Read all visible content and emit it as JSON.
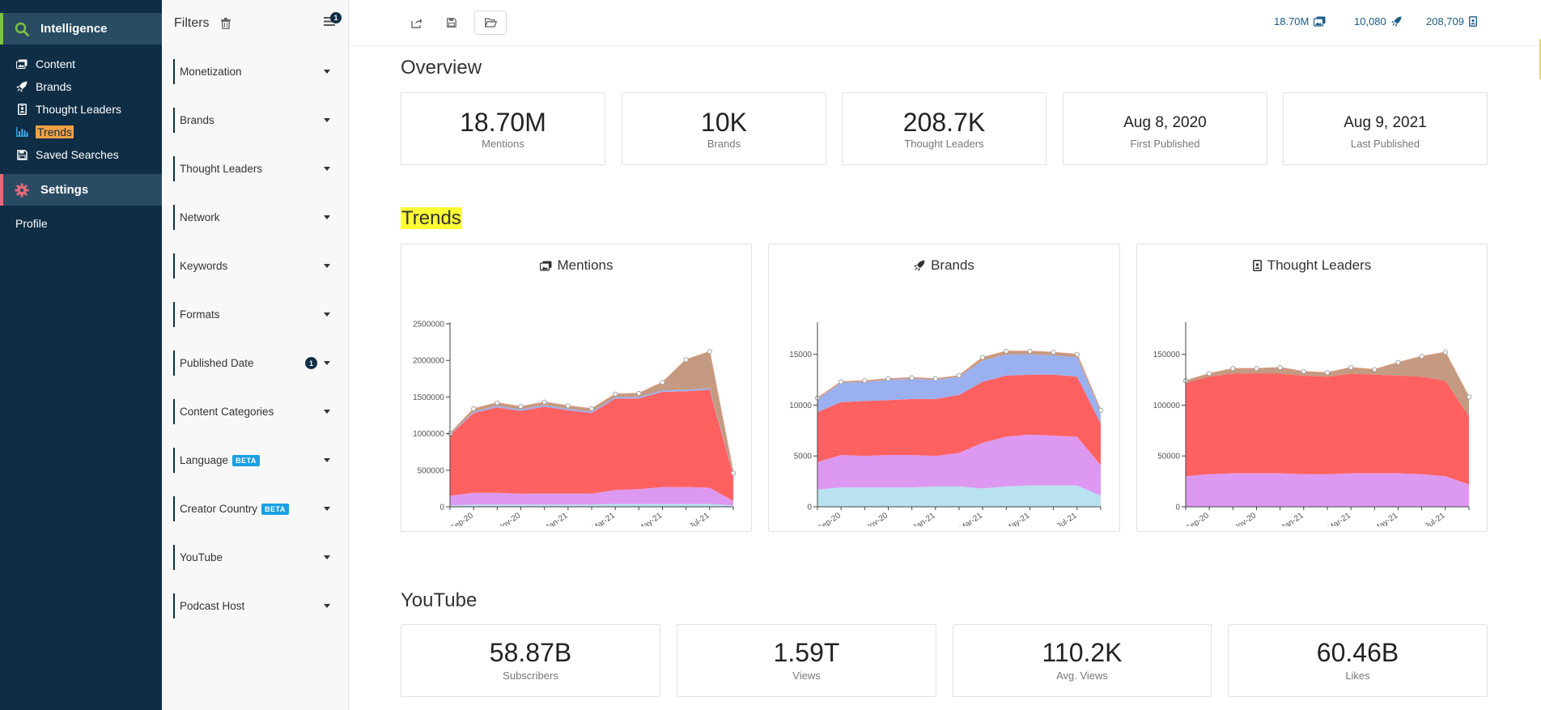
{
  "nav": {
    "intelligence": {
      "label": "Intelligence",
      "accent": "#7dc242"
    },
    "items": [
      {
        "label": "Content",
        "icon": "images-icon"
      },
      {
        "label": "Brands",
        "icon": "rocket-icon"
      },
      {
        "label": "Thought Leaders",
        "icon": "id-badge-icon"
      },
      {
        "label": "Trends",
        "icon": "bar-chart-icon"
      },
      {
        "label": "Saved Searches",
        "icon": "floppy-disk-icon"
      }
    ],
    "settings": {
      "label": "Settings",
      "accent": "#e8697a"
    },
    "profile": "Profile"
  },
  "filters": {
    "title": "Filters",
    "menu_badge": "1",
    "items": [
      {
        "label": "Monetization"
      },
      {
        "label": "Brands"
      },
      {
        "label": "Thought Leaders"
      },
      {
        "label": "Network"
      },
      {
        "label": "Keywords"
      },
      {
        "label": "Formats"
      },
      {
        "label": "Published Date",
        "badge": "1"
      },
      {
        "label": "Content Categories"
      },
      {
        "label": "Language",
        "tag": "BETA"
      },
      {
        "label": "Creator Country",
        "tag": "BETA"
      },
      {
        "label": "YouTube"
      },
      {
        "label": "Podcast Host"
      }
    ]
  },
  "topbar": {
    "mentions": "18.70M",
    "brands": "10,080",
    "thought_leaders": "208,709"
  },
  "overview": {
    "title": "Overview",
    "cards": [
      {
        "value": "18.70M",
        "label": "Mentions"
      },
      {
        "value": "10K",
        "label": "Brands"
      },
      {
        "value": "208.7K",
        "label": "Thought Leaders"
      },
      {
        "value": "Aug 8, 2020",
        "label": "First Published"
      },
      {
        "value": "Aug 9, 2021",
        "label": "Last Published"
      }
    ]
  },
  "trends": {
    "title": "Trends"
  },
  "youtube": {
    "title": "YouTube",
    "cards": [
      {
        "value": "58.87B",
        "label": "Subscribers"
      },
      {
        "value": "1.59T",
        "label": "Views"
      },
      {
        "value": "110.2K",
        "label": "Avg. Views"
      },
      {
        "value": "60.46B",
        "label": "Likes"
      }
    ]
  },
  "chart_data": [
    {
      "type": "area",
      "title": "Mentions",
      "icon": "images-icon",
      "x_ticks": [
        "Sep-20",
        "Nov-20",
        "Jan-21",
        "Mar-21",
        "May-21",
        "Jul-21"
      ],
      "y_ticks": [
        0,
        500000,
        1000000,
        1500000,
        2000000,
        2500000
      ],
      "ylim": [
        0,
        2500000
      ],
      "stacked": true,
      "series": [
        {
          "color": "#b8e2f0",
          "values": [
            20000,
            30000,
            30000,
            30000,
            30000,
            30000,
            30000,
            40000,
            40000,
            40000,
            40000,
            40000,
            20000
          ]
        },
        {
          "color": "#dd99f2",
          "values": [
            130000,
            160000,
            160000,
            150000,
            150000,
            150000,
            150000,
            190000,
            200000,
            230000,
            230000,
            220000,
            60000
          ]
        },
        {
          "color": "#ff6161",
          "values": [
            830000,
            1090000,
            1170000,
            1130000,
            1190000,
            1140000,
            1100000,
            1250000,
            1240000,
            1300000,
            1310000,
            1340000,
            350000
          ]
        },
        {
          "color": "#9bb0f0",
          "values": [
            10000,
            20000,
            20000,
            20000,
            20000,
            20000,
            20000,
            20000,
            20000,
            20000,
            20000,
            20000,
            10000
          ]
        },
        {
          "color": "#c49a82",
          "values": [
            10000,
            40000,
            40000,
            40000,
            40000,
            40000,
            40000,
            40000,
            50000,
            110000,
            410000,
            500000,
            20000
          ]
        }
      ]
    },
    {
      "type": "area",
      "title": "Brands",
      "icon": "rocket-icon",
      "x_ticks": [
        "Sep-20",
        "Nov-20",
        "Jan-21",
        "Mar-21",
        "May-21",
        "Jul-21"
      ],
      "y_ticks": [
        0,
        5000,
        10000,
        15000
      ],
      "ylim": [
        0,
        18000
      ],
      "stacked": true,
      "series": [
        {
          "color": "#b8e2f0",
          "values": [
            1700,
            1900,
            1900,
            1900,
            1900,
            2000,
            2000,
            1800,
            2000,
            2100,
            2100,
            2100,
            1100
          ]
        },
        {
          "color": "#dd99f2",
          "values": [
            2700,
            3200,
            3100,
            3200,
            3200,
            3000,
            3300,
            4500,
            4900,
            5000,
            4900,
            4800,
            3000
          ]
        },
        {
          "color": "#ff6161",
          "values": [
            4900,
            5200,
            5400,
            5400,
            5500,
            5600,
            5700,
            6000,
            6000,
            5900,
            6000,
            5900,
            4100
          ]
        },
        {
          "color": "#9bb0f0",
          "values": [
            1300,
            1900,
            1900,
            2000,
            2000,
            1900,
            1800,
            2100,
            2100,
            2000,
            1900,
            1900,
            1200
          ]
        },
        {
          "color": "#c49a82",
          "values": [
            100,
            100,
            100,
            100,
            100,
            100,
            100,
            300,
            300,
            300,
            300,
            300,
            100
          ]
        }
      ]
    },
    {
      "type": "area",
      "title": "Thought Leaders",
      "icon": "id-badge-icon",
      "x_ticks": [
        "Sep-20",
        "Nov-20",
        "Jan-21",
        "Mar-21",
        "May-21",
        "Jul-21"
      ],
      "y_ticks": [
        0,
        50000,
        100000,
        150000
      ],
      "ylim": [
        0,
        180000
      ],
      "stacked": true,
      "series": [
        {
          "color": "#dd99f2",
          "values": [
            30000,
            32000,
            33000,
            33000,
            33000,
            32000,
            32000,
            33000,
            33000,
            33000,
            32000,
            30000,
            22000
          ]
        },
        {
          "color": "#ff6161",
          "values": [
            92000,
            96000,
            98000,
            98000,
            98000,
            97000,
            96000,
            98000,
            97000,
            96000,
            96000,
            94000,
            67000
          ]
        },
        {
          "color": "#c49a82",
          "values": [
            2000,
            3000,
            5000,
            5000,
            6000,
            4000,
            4000,
            6000,
            5000,
            13000,
            20000,
            28000,
            19000
          ]
        }
      ]
    }
  ]
}
